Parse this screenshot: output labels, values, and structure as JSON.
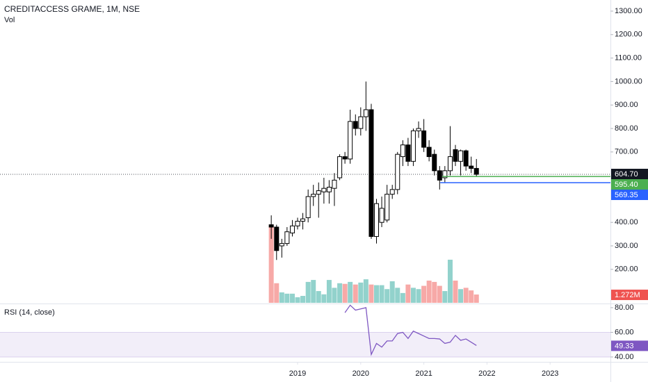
{
  "chart_data": [
    {
      "type": "candlestick",
      "title": "CREDITACCESS GRAME, 1M, NSE",
      "x": [
        2018.583,
        2018.667,
        2018.75,
        2018.833,
        2018.917,
        2019,
        2019.083,
        2019.167,
        2019.25,
        2019.333,
        2019.417,
        2019.5,
        2019.583,
        2019.667,
        2019.75,
        2019.833,
        2019.917,
        2020,
        2020.083,
        2020.167,
        2020.25,
        2020.333,
        2020.417,
        2020.5,
        2020.583,
        2020.667,
        2020.75,
        2020.833,
        2020.917,
        2021,
        2021.083,
        2021.167,
        2021.25,
        2021.333,
        2021.417,
        2021.5,
        2021.583,
        2021.667,
        2021.75,
        2021.833
      ],
      "open": [
        390,
        380,
        300,
        310,
        355,
        385,
        405,
        420,
        510,
        520,
        530,
        530,
        545,
        590,
        680,
        670,
        830,
        800,
        850,
        880,
        340,
        400,
        410,
        520,
        540,
        680,
        730,
        660,
        790,
        790,
        720,
        690,
        620,
        590,
        620,
        710,
        660,
        705,
        640,
        630
      ],
      "high": [
        430,
        390,
        330,
        380,
        410,
        420,
        440,
        540,
        560,
        570,
        590,
        580,
        610,
        690,
        700,
        880,
        860,
        890,
        1000,
        905,
        500,
        510,
        560,
        560,
        700,
        750,
        760,
        800,
        830,
        840,
        750,
        710,
        640,
        640,
        810,
        730,
        710,
        710,
        680,
        670
      ],
      "low": [
        330,
        240,
        250,
        300,
        340,
        370,
        370,
        400,
        470,
        420,
        480,
        480,
        470,
        580,
        650,
        650,
        770,
        770,
        790,
        330,
        310,
        380,
        400,
        500,
        520,
        640,
        640,
        640,
        760,
        700,
        660,
        600,
        540,
        570,
        600,
        640,
        600,
        620,
        610,
        595
      ],
      "close": [
        380,
        280,
        310,
        360,
        385,
        405,
        415,
        510,
        520,
        535,
        545,
        550,
        580,
        680,
        670,
        830,
        800,
        850,
        880,
        340,
        480,
        460,
        520,
        540,
        690,
        730,
        660,
        790,
        800,
        720,
        680,
        620,
        580,
        620,
        680,
        660,
        705,
        640,
        630,
        604.7
      ],
      "up_color": "#ffffff",
      "down_color": "#000000",
      "xlim": [
        2014.286,
        2023.956
      ],
      "xticks": [
        2019,
        2020,
        2021,
        2022,
        2023
      ],
      "ylim": [
        57.4,
        1347.3
      ],
      "yticks": [
        {
          "value": 200,
          "label": "200.00"
        },
        {
          "value": 300,
          "label": "300.00"
        },
        {
          "value": 400,
          "label": "400.00"
        },
        {
          "value": 700,
          "label": "700.00"
        },
        {
          "value": 800,
          "label": "800.00"
        },
        {
          "value": 900,
          "label": "900.00"
        },
        {
          "value": 1000,
          "label": "1000.00"
        },
        {
          "value": 1100,
          "label": "1100.00"
        },
        {
          "value": 1200,
          "label": "1200.00"
        },
        {
          "value": 1300,
          "label": "1300.00"
        }
      ],
      "last_price": {
        "value": 604.7,
        "label": "604.70"
      },
      "hlines": [
        {
          "value": 595.4,
          "label": "595.40",
          "color": "#4caf50",
          "from": 2021.29
        },
        {
          "value": 569.35,
          "label": "569.35",
          "color": "#2962ff",
          "from": 2021.26
        }
      ]
    },
    {
      "type": "volume",
      "title": "Vol",
      "x": [
        2018.583,
        2018.667,
        2018.75,
        2018.833,
        2018.917,
        2019,
        2019.083,
        2019.167,
        2019.25,
        2019.333,
        2019.417,
        2019.5,
        2019.583,
        2019.667,
        2019.75,
        2019.833,
        2019.917,
        2020,
        2020.083,
        2020.167,
        2020.25,
        2020.333,
        2020.417,
        2020.5,
        2020.583,
        2020.667,
        2020.75,
        2020.833,
        2020.917,
        2021,
        2021.083,
        2021.167,
        2021.25,
        2021.333,
        2021.417,
        2021.5,
        2021.583,
        2021.667,
        2021.75,
        2021.833
      ],
      "values": [
        11.8,
        3.0,
        1.6,
        1.4,
        1.4,
        0.85,
        1.06,
        3.2,
        3.5,
        1.8,
        1.3,
        3.5,
        2.3,
        3.0,
        2.9,
        3.2,
        2.8,
        3.1,
        3.6,
        2.8,
        2.7,
        2.7,
        2.1,
        3.3,
        2.3,
        1.5,
        2.8,
        2.3,
        2.1,
        2.6,
        3.4,
        3.2,
        2.6,
        1.8,
        6.6,
        3.4,
        2.1,
        2.3,
        1.9,
        1.272
      ],
      "value_labels": [
        null,
        null,
        null,
        null,
        null,
        null,
        null,
        null,
        null,
        null,
        null,
        null,
        null,
        null,
        null,
        null,
        null,
        null,
        null,
        null,
        null,
        null,
        null,
        null,
        null,
        null,
        null,
        null,
        null,
        null,
        null,
        null,
        null,
        null,
        null,
        null,
        null,
        null,
        null,
        "1.272M"
      ],
      "up_color": "#92d2cc",
      "down_color": "#f7a9a7",
      "label_color": "#ef5350"
    },
    {
      "type": "line",
      "title": "RSI (14, close)",
      "x": [
        2018.583,
        2018.667,
        2018.75,
        2018.833,
        2018.917,
        2019,
        2019.083,
        2019.167,
        2019.25,
        2019.333,
        2019.417,
        2019.5,
        2019.583,
        2019.667,
        2019.75,
        2019.833,
        2019.917,
        2020,
        2020.083,
        2020.167,
        2020.25,
        2020.333,
        2020.417,
        2020.5,
        2020.583,
        2020.667,
        2020.75,
        2020.833,
        2020.917,
        2021,
        2021.083,
        2021.167,
        2021.25,
        2021.333,
        2021.417,
        2021.5,
        2021.583,
        2021.667,
        2021.75,
        2021.833
      ],
      "values": [
        null,
        null,
        null,
        null,
        null,
        null,
        null,
        null,
        null,
        null,
        null,
        null,
        null,
        null,
        76,
        82,
        78,
        79,
        80,
        42,
        51,
        48,
        53,
        53,
        59,
        60,
        55,
        61,
        59,
        57,
        55,
        55,
        54.6,
        51,
        52,
        57.5,
        53.5,
        54.6,
        52,
        49.33
      ],
      "value_labels": [
        null,
        null,
        null,
        null,
        null,
        null,
        null,
        null,
        null,
        null,
        null,
        null,
        null,
        null,
        null,
        null,
        null,
        null,
        null,
        null,
        null,
        null,
        null,
        null,
        null,
        null,
        null,
        null,
        null,
        null,
        null,
        null,
        null,
        null,
        null,
        null,
        null,
        null,
        null,
        "49.33"
      ],
      "color": "#7e57c2",
      "ylim": [
        36.6,
        82.8
      ],
      "yticks": [
        {
          "value": 40,
          "label": "40.00"
        },
        {
          "value": 60,
          "label": "60.00"
        },
        {
          "value": 80,
          "label": "80.00"
        }
      ],
      "band": [
        40,
        60
      ]
    }
  ]
}
